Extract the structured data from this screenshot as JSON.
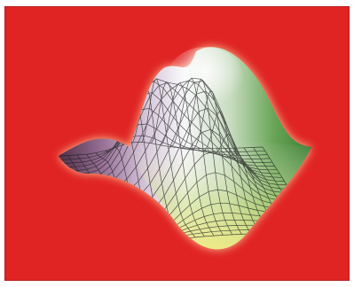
{
  "scene": {
    "background_color": "#e02424",
    "border_color": "#b81a1a",
    "glow_color": "#fff2b0",
    "mesh_color": "#1e1e1e",
    "palette": {
      "left_dark": "#5a3550",
      "left_mid": "#a77fa8",
      "top_light": "#eef2f6",
      "center_white": "#ffffff",
      "right_green": "#3f8f36",
      "front_green": "#b8d86a",
      "front_yellow": "#f0e878"
    },
    "object": "3d-wireframe-surface"
  }
}
